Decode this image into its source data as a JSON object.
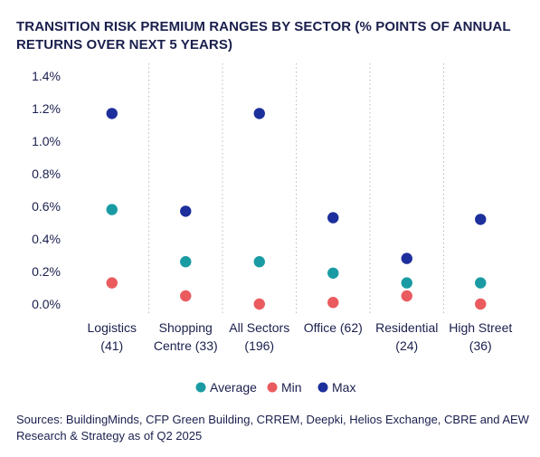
{
  "chart_data": {
    "type": "scatter",
    "title": "TRANSITION RISK PREMIUM RANGES BY SECTOR (% POINTS OF ANNUAL RETURNS OVER NEXT 5 YEARS)",
    "categories": [
      [
        "Logistics",
        "(41)"
      ],
      [
        "Shopping",
        "Centre (33)"
      ],
      [
        "All Sectors",
        "(196)"
      ],
      [
        "Office (62)",
        ""
      ],
      [
        "Residential",
        "(24)"
      ],
      [
        "High Street",
        "(36)"
      ]
    ],
    "y_ticks": [
      "0.0%",
      "0.2%",
      "0.4%",
      "0.6%",
      "0.8%",
      "1.0%",
      "1.2%",
      "1.4%"
    ],
    "ylim": [
      0,
      1.4
    ],
    "grid": "vertical dotted",
    "legend_position": "bottom",
    "series": [
      {
        "name": "Average",
        "color": "#1a9ba3",
        "values": [
          0.58,
          0.26,
          0.26,
          0.19,
          0.13,
          0.13
        ]
      },
      {
        "name": "Min",
        "color": "#ea5b5f",
        "values": [
          0.13,
          0.05,
          0.0,
          0.01,
          0.05,
          0.0
        ]
      },
      {
        "name": "Max",
        "color": "#1d2f9c",
        "values": [
          1.17,
          0.57,
          1.17,
          0.53,
          0.28,
          0.52
        ]
      }
    ],
    "source": "Sources: BuildingMinds, CFP Green Building, CRREM, Deepki, Helios Exchange, CBRE and AEW Research & Strategy as of Q2 2025"
  }
}
